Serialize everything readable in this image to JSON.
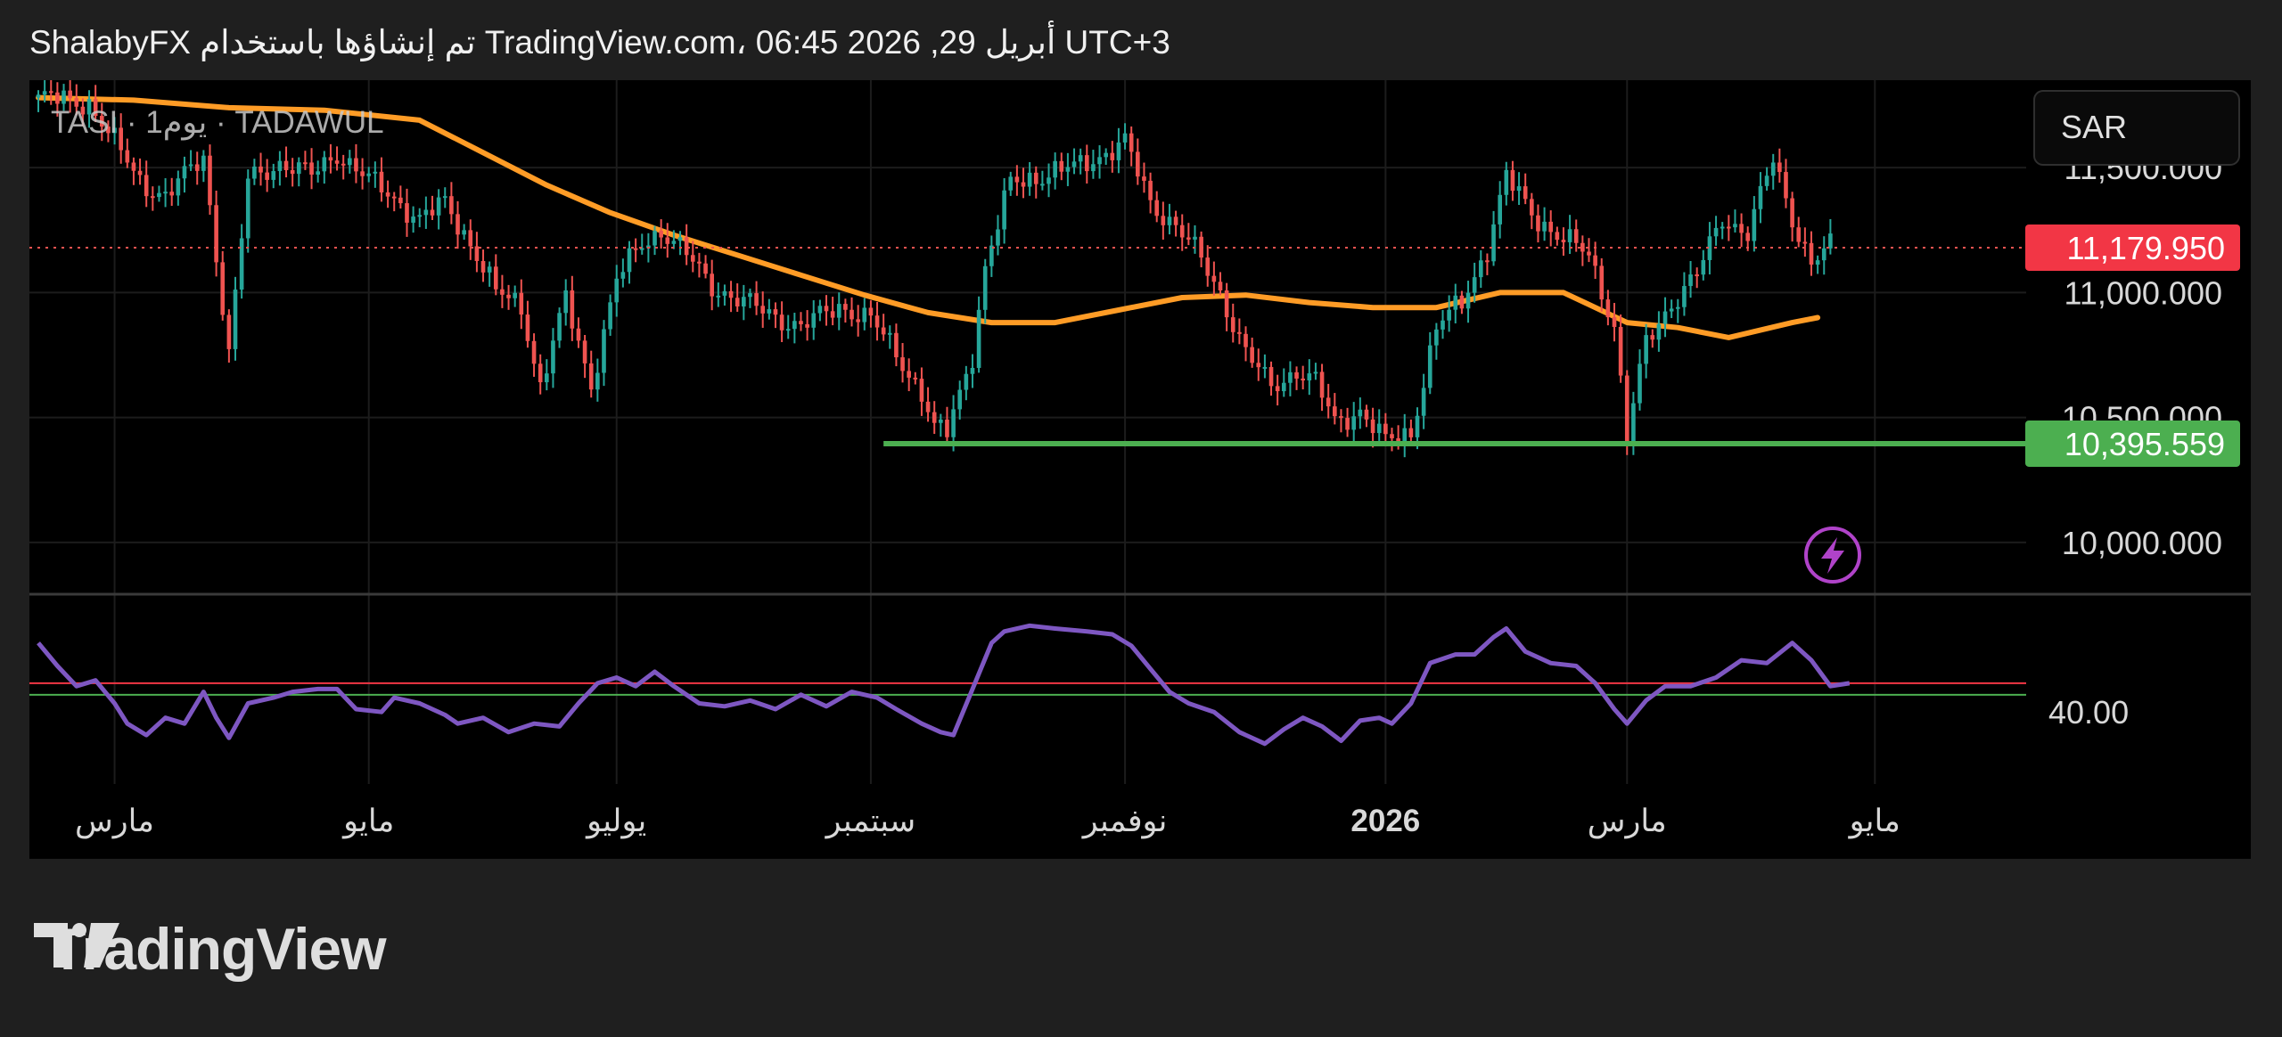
{
  "header": {
    "text": "ShalabyFX تم إنشاؤها باستخدام TradingView.com، 06:45 2026 ,29 أبريل UTC+3"
  },
  "legend": {
    "symbol_line": "TASI · 1يوم · TADAWUL"
  },
  "currency_button": {
    "label": "SAR"
  },
  "logo": {
    "text": "TradingView"
  },
  "colors": {
    "up": "#26a69a",
    "down": "#ef5350",
    "ma": "#ff9c26",
    "rsi": "#7e57c2",
    "support": "#4caf50",
    "last_price_badge": "#f23645",
    "rsi_upper": "#f23645",
    "rsi_lower": "#4caf50",
    "background": "#000000"
  },
  "icons": {
    "alert": "lightning-icon",
    "logo": "tradingview-logo-icon"
  },
  "chart_data": [
    {
      "type": "candlestick",
      "symbol": "TASI",
      "interval": "1يوم",
      "exchange": "TADAWUL",
      "currency": "SAR",
      "ylim": [
        9800,
        11850
      ],
      "y_ticks": [
        10000,
        10500,
        11000,
        11500
      ],
      "y_tick_labels": [
        "10,000.000",
        "10,500.000",
        "11,000.000",
        "11,500.000"
      ],
      "x_ticks": [
        {
          "i": 12,
          "label": "مارس"
        },
        {
          "i": 52,
          "label": "مايو"
        },
        {
          "i": 91,
          "label": "يوليو"
        },
        {
          "i": 131,
          "label": "سبتمبر"
        },
        {
          "i": 171,
          "label": "نوفمبر"
        },
        {
          "i": 212,
          "label": "2026",
          "bold": true
        },
        {
          "i": 250,
          "label": "مارس"
        },
        {
          "i": 289,
          "label": "مايو"
        }
      ],
      "x_count": 310,
      "close_points": [
        [
          0,
          11780
        ],
        [
          8,
          11760
        ],
        [
          12,
          11600
        ],
        [
          16,
          11450
        ],
        [
          20,
          11380
        ],
        [
          26,
          11550
        ],
        [
          30,
          10750
        ],
        [
          33,
          11450
        ],
        [
          38,
          11520
        ],
        [
          43,
          11470
        ],
        [
          47,
          11560
        ],
        [
          52,
          11450
        ],
        [
          56,
          11380
        ],
        [
          60,
          11290
        ],
        [
          64,
          11360
        ],
        [
          68,
          11200
        ],
        [
          72,
          11000
        ],
        [
          76,
          10950
        ],
        [
          79,
          10620
        ],
        [
          83,
          10970
        ],
        [
          87,
          10630
        ],
        [
          91,
          11050
        ],
        [
          95,
          11200
        ],
        [
          98,
          11250
        ],
        [
          102,
          11150
        ],
        [
          106,
          11030
        ],
        [
          110,
          10970
        ],
        [
          115,
          10920
        ],
        [
          120,
          10860
        ],
        [
          126,
          10950
        ],
        [
          131,
          10890
        ],
        [
          135,
          10760
        ],
        [
          139,
          10600
        ],
        [
          141,
          10450
        ],
        [
          143,
          10440
        ],
        [
          147,
          10760
        ],
        [
          149,
          11100
        ],
        [
          153,
          11440
        ],
        [
          158,
          11470
        ],
        [
          163,
          11500
        ],
        [
          168,
          11560
        ],
        [
          171,
          11600
        ],
        [
          175,
          11360
        ],
        [
          179,
          11270
        ],
        [
          182,
          11170
        ],
        [
          186,
          11000
        ],
        [
          190,
          10760
        ],
        [
          194,
          10620
        ],
        [
          198,
          10690
        ],
        [
          201,
          10640
        ],
        [
          204,
          10480
        ],
        [
          208,
          10530
        ],
        [
          212,
          10400
        ],
        [
          216,
          10440
        ],
        [
          220,
          10860
        ],
        [
          224,
          10960
        ],
        [
          228,
          11180
        ],
        [
          231,
          11460
        ],
        [
          235,
          11320
        ],
        [
          239,
          11230
        ],
        [
          244,
          11150
        ],
        [
          248,
          10870
        ],
        [
          250,
          10420
        ],
        [
          253,
          10800
        ],
        [
          257,
          10960
        ],
        [
          261,
          11070
        ],
        [
          265,
          11300
        ],
        [
          269,
          11240
        ],
        [
          273,
          11530
        ],
        [
          276,
          11300
        ],
        [
          279,
          11120
        ],
        [
          282,
          11180
        ]
      ],
      "moving_average": {
        "points": [
          [
            0,
            11780
          ],
          [
            15,
            11770
          ],
          [
            30,
            11740
          ],
          [
            45,
            11730
          ],
          [
            60,
            11690
          ],
          [
            70,
            11560
          ],
          [
            80,
            11430
          ],
          [
            90,
            11320
          ],
          [
            100,
            11230
          ],
          [
            110,
            11150
          ],
          [
            120,
            11070
          ],
          [
            130,
            10990
          ],
          [
            140,
            10920
          ],
          [
            150,
            10880
          ],
          [
            160,
            10880
          ],
          [
            170,
            10930
          ],
          [
            180,
            10980
          ],
          [
            190,
            10990
          ],
          [
            200,
            10960
          ],
          [
            210,
            10940
          ],
          [
            220,
            10940
          ],
          [
            230,
            11000
          ],
          [
            240,
            11000
          ],
          [
            250,
            10880
          ],
          [
            258,
            10860
          ],
          [
            266,
            10820
          ],
          [
            276,
            10880
          ],
          [
            280,
            10900
          ]
        ]
      },
      "last_price": {
        "value": 11179.95,
        "label": "11,179.950"
      },
      "support_line": {
        "value": 10395.559,
        "label": "10,395.559",
        "from_i": 133
      }
    },
    {
      "type": "line",
      "name": "RSI",
      "ylim": [
        15,
        80
      ],
      "y_tick_labels": [
        {
          "value": 40,
          "label": "40.00"
        }
      ],
      "upper_level": 50,
      "lower_level": 46,
      "points": [
        [
          0,
          64
        ],
        [
          3,
          56
        ],
        [
          6,
          49
        ],
        [
          9,
          51
        ],
        [
          12,
          43
        ],
        [
          14,
          36
        ],
        [
          17,
          32
        ],
        [
          20,
          38
        ],
        [
          23,
          36
        ],
        [
          26,
          47
        ],
        [
          28,
          38
        ],
        [
          30,
          31
        ],
        [
          33,
          43
        ],
        [
          37,
          45
        ],
        [
          40,
          47
        ],
        [
          44,
          48
        ],
        [
          47,
          48
        ],
        [
          50,
          41
        ],
        [
          54,
          40
        ],
        [
          56,
          45
        ],
        [
          60,
          43
        ],
        [
          64,
          39
        ],
        [
          66,
          36
        ],
        [
          70,
          38
        ],
        [
          74,
          33
        ],
        [
          78,
          36
        ],
        [
          82,
          35
        ],
        [
          85,
          43
        ],
        [
          88,
          50
        ],
        [
          91,
          52
        ],
        [
          94,
          49
        ],
        [
          97,
          54
        ],
        [
          100,
          49
        ],
        [
          104,
          43
        ],
        [
          108,
          42
        ],
        [
          112,
          44
        ],
        [
          116,
          41
        ],
        [
          120,
          46
        ],
        [
          124,
          42
        ],
        [
          128,
          47
        ],
        [
          132,
          45
        ],
        [
          135,
          41
        ],
        [
          139,
          36
        ],
        [
          142,
          33
        ],
        [
          144,
          32
        ],
        [
          147,
          48
        ],
        [
          150,
          64
        ],
        [
          152,
          68
        ],
        [
          156,
          70
        ],
        [
          160,
          69
        ],
        [
          165,
          68
        ],
        [
          169,
          67
        ],
        [
          172,
          63
        ],
        [
          175,
          55
        ],
        [
          178,
          47
        ],
        [
          181,
          43
        ],
        [
          185,
          40
        ],
        [
          189,
          33
        ],
        [
          193,
          29
        ],
        [
          196,
          34
        ],
        [
          199,
          38
        ],
        [
          202,
          35
        ],
        [
          205,
          30
        ],
        [
          208,
          37
        ],
        [
          211,
          38
        ],
        [
          213,
          36
        ],
        [
          216,
          43
        ],
        [
          219,
          57
        ],
        [
          223,
          60
        ],
        [
          226,
          60
        ],
        [
          229,
          66
        ],
        [
          231,
          69
        ],
        [
          234,
          61
        ],
        [
          238,
          57
        ],
        [
          242,
          56
        ],
        [
          245,
          50
        ],
        [
          248,
          41
        ],
        [
          250,
          36
        ],
        [
          253,
          44
        ],
        [
          256,
          49
        ],
        [
          260,
          49
        ],
        [
          264,
          52
        ],
        [
          268,
          58
        ],
        [
          272,
          57
        ],
        [
          276,
          64
        ],
        [
          279,
          58
        ],
        [
          282,
          49
        ],
        [
          285,
          50
        ]
      ]
    }
  ]
}
